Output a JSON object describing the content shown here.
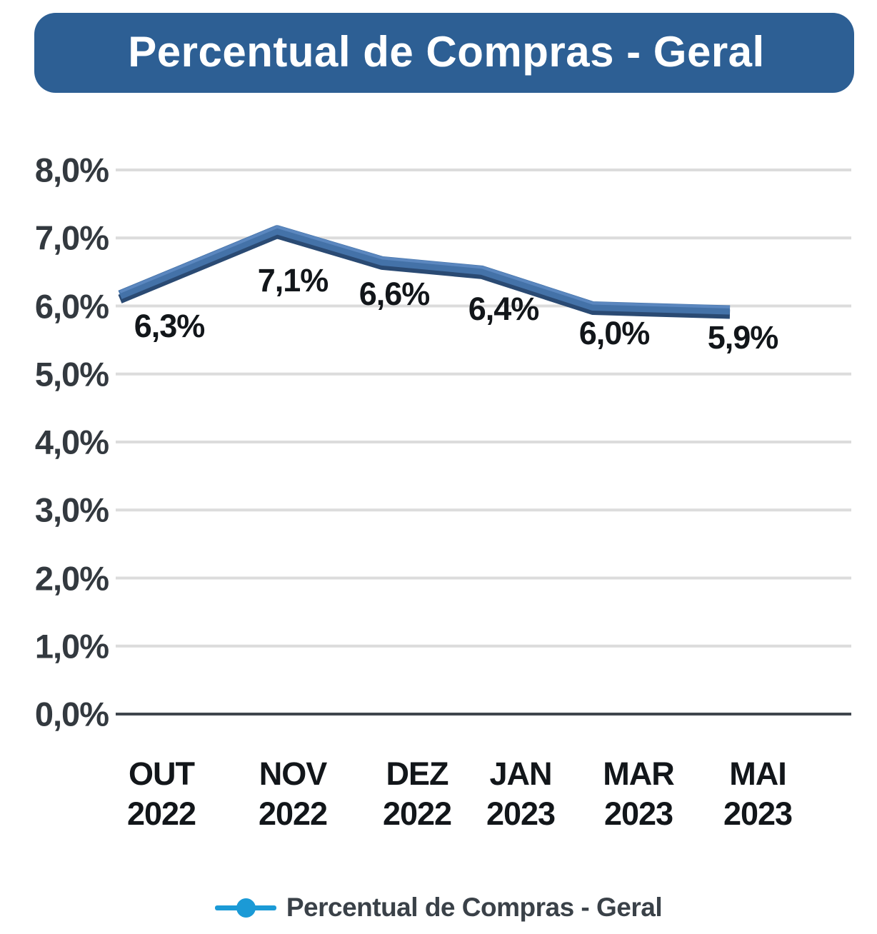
{
  "header": {
    "title": "Percentual de Compras - Geral"
  },
  "colors": {
    "header_bg": "#3a78b5",
    "header_edge": "#2d5f94",
    "header_text": "#ffffff",
    "line_main": "#4472a8",
    "line_shadow": "#2a4a73",
    "line_highlight": "#5b87bf",
    "grid": "#dcdcdc",
    "baseline": "#3f464d",
    "tick_text": "#33393f",
    "label_text": "#12161a",
    "legend_accent": "#1b9ad6",
    "legend_text": "#3a4148"
  },
  "chart_data": {
    "type": "line",
    "title": "Percentual de Compras - Geral",
    "categories": [
      "OUT 2022",
      "NOV 2022",
      "DEZ 2022",
      "JAN 2023",
      "MAR 2023",
      "MAI 2023"
    ],
    "series": [
      {
        "name": "Percentual de Compras - Geral",
        "values": [
          6.3,
          7.1,
          6.6,
          6.4,
          6.0,
          5.9
        ]
      }
    ],
    "data_labels": [
      "6,3%",
      "7,1%",
      "6,6%",
      "6,4%",
      "6,0%",
      "5,9%"
    ],
    "y_tick_labels": [
      "0,0%",
      "1,0%",
      "2,0%",
      "3,0%",
      "4,0%",
      "5,0%",
      "6,0%",
      "7,0%",
      "8,0%"
    ],
    "ylim": [
      0,
      8
    ],
    "grid": "horizontal",
    "legend_position": "bottom"
  },
  "legend": {
    "label": "Percentual de Compras - Geral"
  }
}
